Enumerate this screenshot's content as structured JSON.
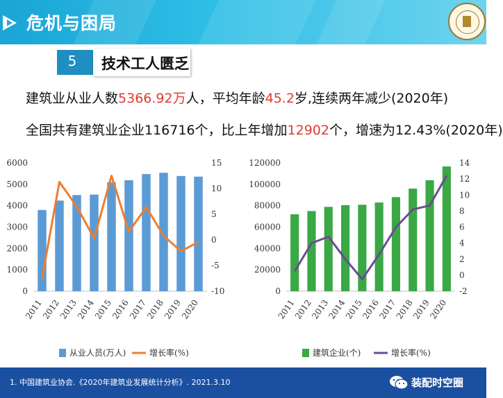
{
  "slide": {
    "title": "危机与困局",
    "section_number": "5",
    "section_title": "技术工人匮乏",
    "line1": {
      "a": "建筑业从业人数",
      "b": "5366.92万",
      "c": "人，平均年龄",
      "d": "45.2",
      "e": "岁,连续两年减少(2020年)"
    },
    "line2": {
      "a": "全国共有建筑业企业116716个，比上年增加",
      "b": "12902",
      "c": "个，增速为12.43%(2020年)"
    },
    "footnote": "1. 中国建筑业协会.《2020年建筑业发展统计分析》. 2021.3.10",
    "wechat_name": "装配时空圈"
  },
  "icons": [
    "play-icon",
    "university-seal-icon",
    "wechat-icon"
  ],
  "colors": {
    "banner": "#2fbfe6",
    "bar_blue": "#5b9bd5",
    "line_orange": "#ed7d31",
    "bar_green": "#3aa845",
    "line_purple": "#6a4c93",
    "accent_red": "#e03a2f",
    "footer": "#1b4fa0"
  },
  "chart_data": [
    {
      "type": "bar",
      "categories": [
        "2011",
        "2012",
        "2013",
        "2014",
        "2015",
        "2016",
        "2017",
        "2018",
        "2019",
        "2020"
      ],
      "series": [
        {
          "name": "从业人员(万人)",
          "type": "bar",
          "axis": "left",
          "values": [
            3800,
            4240,
            4500,
            4520,
            5100,
            5190,
            5480,
            5540,
            5390,
            5360
          ]
        },
        {
          "name": "增长率(%)",
          "type": "line",
          "axis": "right",
          "values": [
            -7.5,
            11.3,
            6.5,
            0.3,
            12.5,
            1.6,
            6.4,
            0.8,
            -2.2,
            -0.4
          ]
        }
      ],
      "ylim_left": [
        0,
        6000
      ],
      "yticks_left": [
        "0",
        "1000",
        "2000",
        "3000",
        "4000",
        "5000",
        "6000"
      ],
      "ylim_right": [
        -10,
        15
      ],
      "yticks_right": [
        "-10",
        "-5",
        "0",
        "5",
        "10",
        "15"
      ],
      "grid": false,
      "legend": "bottom"
    },
    {
      "type": "bar",
      "categories": [
        "2011",
        "2012",
        "2013",
        "2014",
        "2015",
        "2016",
        "2017",
        "2018",
        "2019",
        "2020"
      ],
      "series": [
        {
          "name": "建筑企业(个)",
          "type": "bar",
          "axis": "left",
          "values": [
            72000,
            75000,
            78900,
            80500,
            80900,
            83000,
            88000,
            96000,
            103800,
            116716
          ]
        },
        {
          "name": "增长率(%)",
          "type": "line",
          "axis": "right",
          "values": [
            0.5,
            4.0,
            4.8,
            2.0,
            -0.5,
            2.6,
            6.0,
            8.2,
            8.7,
            12.43
          ]
        }
      ],
      "ylim_left": [
        0,
        120000
      ],
      "yticks_left": [
        "0",
        "20000",
        "40000",
        "60000",
        "80000",
        "100000",
        "120000"
      ],
      "ylim_right": [
        -2,
        14
      ],
      "yticks_right": [
        "-2",
        "0",
        "2",
        "4",
        "6",
        "8",
        "10",
        "12",
        "14"
      ],
      "grid": false,
      "legend": "bottom"
    }
  ]
}
